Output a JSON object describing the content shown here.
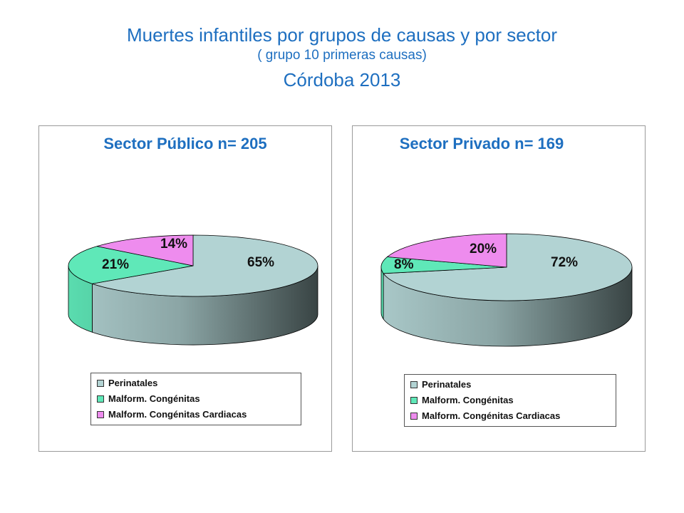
{
  "title": {
    "line1": "Muertes infantiles por grupos de causas y  por sector",
    "line2": "( grupo 10 primeras causas)",
    "line3": "Córdoba 2013"
  },
  "colors": {
    "title": "#1e6fc0",
    "perinatales": "#b2d3d3",
    "congenitas": "#5fe8b8",
    "cardiacas": "#ee8cee"
  },
  "chart_data": [
    {
      "type": "pie",
      "title": "Sector Público n= 205",
      "categories": [
        "Perinatales",
        "Malform. Congénitas",
        "Malform. Congénitas Cardiacas"
      ],
      "values": [
        65,
        21,
        14
      ],
      "data_labels": [
        "65%",
        "21%",
        "14%"
      ],
      "legend": [
        "Perinatales",
        "Malform. Congénitas",
        "Malform. Congénitas Cardiacas"
      ],
      "legend_position": "bottom"
    },
    {
      "type": "pie",
      "title": "Sector Privado n= 169",
      "categories": [
        "Perinatales",
        "Malform. Congénitas",
        "Malform. Congénitas Cardiacas"
      ],
      "values": [
        72,
        8,
        20
      ],
      "data_labels": [
        "72%",
        "8%",
        "20%"
      ],
      "legend": [
        "Perinatales",
        "Malform. Congénitas",
        "Malform. Congénitas Cardiacas"
      ],
      "legend_position": "bottom"
    }
  ]
}
